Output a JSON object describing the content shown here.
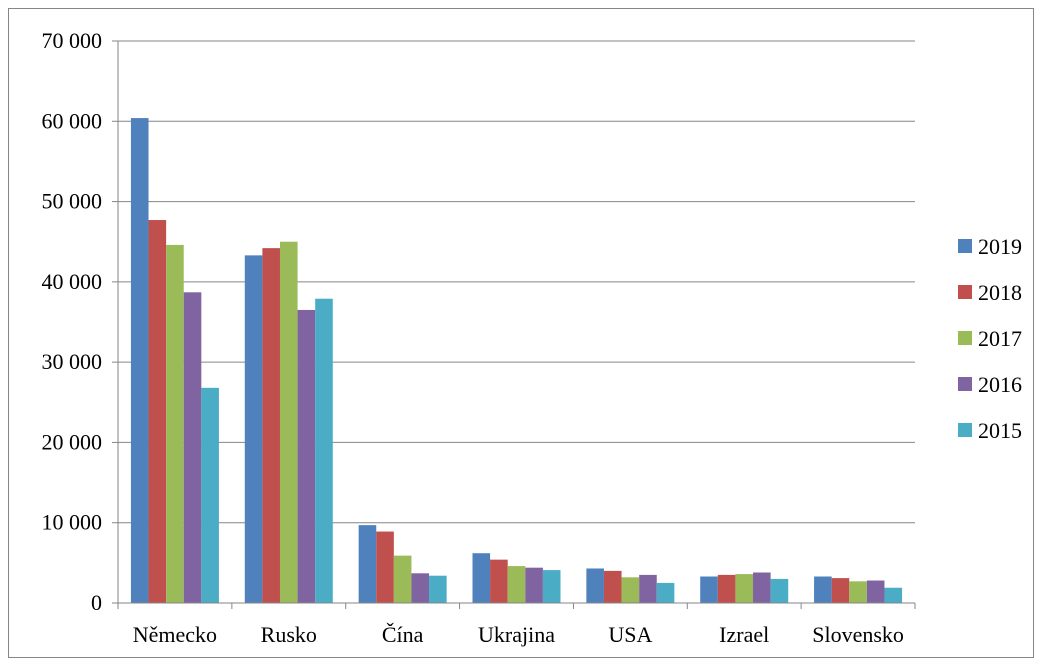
{
  "chart_data": {
    "type": "bar",
    "categories": [
      "Německo",
      "Rusko",
      "Čína",
      "Ukrajina",
      "USA",
      "Izrael",
      "Slovensko"
    ],
    "series": [
      {
        "name": "2019",
        "color": "#4F81BD",
        "values": [
          60400,
          43300,
          9700,
          6200,
          4300,
          3300,
          3300
        ]
      },
      {
        "name": "2018",
        "color": "#C0504D",
        "values": [
          47700,
          44200,
          8900,
          5400,
          4000,
          3500,
          3100
        ]
      },
      {
        "name": "2017",
        "color": "#9BBB59",
        "values": [
          44600,
          45000,
          5900,
          4600,
          3200,
          3600,
          2700
        ]
      },
      {
        "name": "2016",
        "color": "#8064A2",
        "values": [
          38700,
          36500,
          3700,
          4400,
          3500,
          3800,
          2800
        ]
      },
      {
        "name": "2015",
        "color": "#4BACC6",
        "values": [
          26800,
          37900,
          3400,
          4100,
          2500,
          3000,
          1900
        ]
      }
    ],
    "y_ticks": [
      "0",
      "10 000",
      "20 000",
      "30 000",
      "40 000",
      "50 000",
      "60 000",
      "70 000"
    ],
    "ylim": [
      0,
      70000
    ],
    "grid": true,
    "legend_position": "right",
    "title": "",
    "xlabel": "",
    "ylabel": ""
  }
}
